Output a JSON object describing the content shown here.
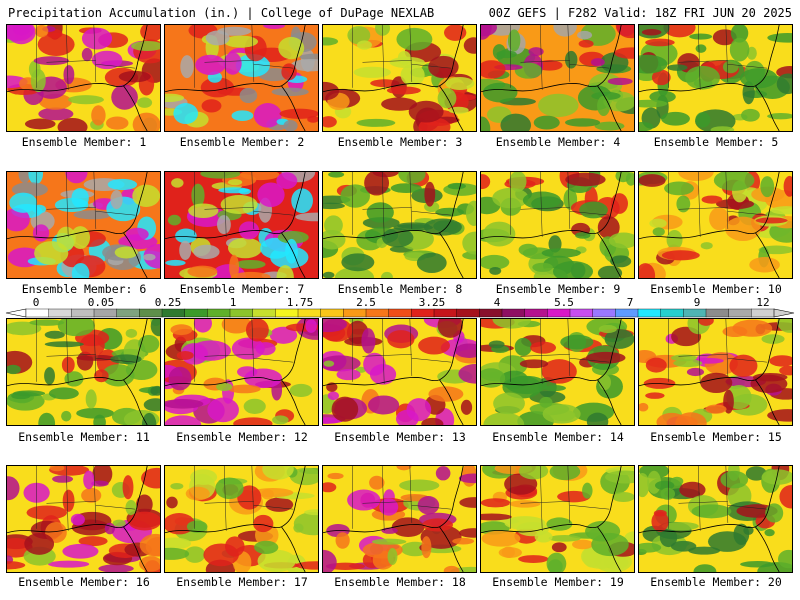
{
  "header": {
    "title_left": "Precipitation Accumulation (in.) | College of DuPage NEXLAB",
    "title_right": "00Z GEFS | F282 Valid: 18Z FRI JUN 20 2025"
  },
  "panels": [
    {
      "label": "Ensemble Member: 1",
      "tone": "wet"
    },
    {
      "label": "Ensemble Member: 2",
      "tone": "very-wet-west"
    },
    {
      "label": "Ensemble Member: 3",
      "tone": "moderate"
    },
    {
      "label": "Ensemble Member: 4",
      "tone": "dry-southwest"
    },
    {
      "label": "Ensemble Member: 5",
      "tone": "dry-south"
    },
    {
      "label": "Ensemble Member: 6",
      "tone": "very-wet-west"
    },
    {
      "label": "Ensemble Member: 7",
      "tone": "very-wet-north"
    },
    {
      "label": "Ensemble Member: 8",
      "tone": "dry-south"
    },
    {
      "label": "Ensemble Member: 9",
      "tone": "dry-south"
    },
    {
      "label": "Ensemble Member: 10",
      "tone": "moderate"
    },
    {
      "label": "Ensemble Member: 11",
      "tone": "dry-south"
    },
    {
      "label": "Ensemble Member: 12",
      "tone": "wet"
    },
    {
      "label": "Ensemble Member: 13",
      "tone": "wet"
    },
    {
      "label": "Ensemble Member: 14",
      "tone": "dry-south"
    },
    {
      "label": "Ensemble Member: 15",
      "tone": "wet"
    },
    {
      "label": "Ensemble Member: 16",
      "tone": "wet"
    },
    {
      "label": "Ensemble Member: 17",
      "tone": "moderate"
    },
    {
      "label": "Ensemble Member: 18",
      "tone": "wet"
    },
    {
      "label": "Ensemble Member: 19",
      "tone": "moderate"
    },
    {
      "label": "Ensemble Member: 20",
      "tone": "dry-south"
    }
  ],
  "colorbar": {
    "tick_labels": [
      "0",
      "0.05",
      "0.25",
      "1",
      "1.75",
      "2.5",
      "3.25",
      "4",
      "5.5",
      "7",
      "9",
      "12"
    ],
    "colors": [
      "#ffffff",
      "#d8d8d8",
      "#bfbfbf",
      "#a6a6a6",
      "#7fa27f",
      "#5e8f4a",
      "#2f7a2f",
      "#3c9a2a",
      "#5fb02a",
      "#8cc42c",
      "#c6df2e",
      "#f5f51e",
      "#f9dd1c",
      "#fac51a",
      "#f99a17",
      "#f6761a",
      "#f04d18",
      "#e0221b",
      "#c5151b",
      "#a5121c",
      "#88102c",
      "#8e0f62",
      "#b4118f",
      "#d818c8",
      "#c84ef0",
      "#9a78ff",
      "#5f9bff",
      "#22e8ff",
      "#26cfcf",
      "#4fb4b4",
      "#8c8c8c",
      "#a9a9a9",
      "#d0d0d0"
    ]
  }
}
